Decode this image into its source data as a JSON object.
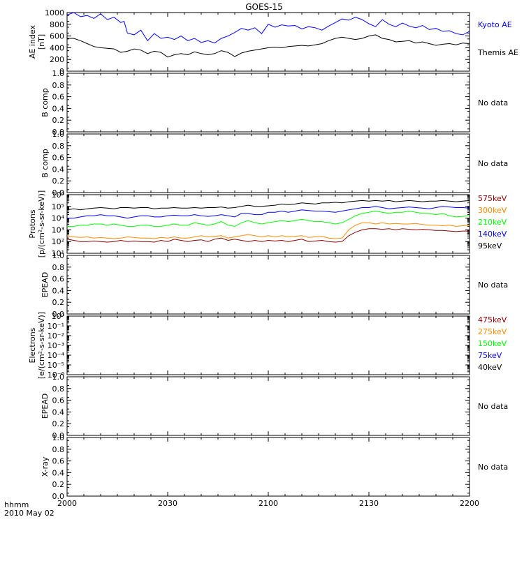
{
  "title": "GOES-15",
  "footer": {
    "time_label": "hhmm",
    "date_label": "2010 May 02"
  },
  "x_axis": {
    "range": [
      0,
      120
    ],
    "tick_labels": [
      "2000",
      "2030",
      "2100",
      "2130",
      "2200"
    ],
    "tick_values": [
      0,
      30,
      60,
      90,
      120
    ]
  },
  "chart_data": [
    {
      "type": "line",
      "id": "ae",
      "ylabel": [
        "AE index",
        "[nT]"
      ],
      "ylim": [
        0,
        1000
      ],
      "tick_labels": [
        "0",
        "200",
        "400",
        "600",
        "800",
        "1000"
      ],
      "x_note": "minutes after 2000 UT",
      "series": [
        {
          "name": "Kyoto AE",
          "color": "#0000ff",
          "x": [
            0,
            2,
            4,
            6,
            8,
            10,
            12,
            14,
            16,
            17,
            18,
            20,
            22,
            24,
            26,
            28,
            30,
            32,
            34,
            36,
            38,
            40,
            42,
            44,
            46,
            48,
            50,
            52,
            54,
            56,
            58,
            60,
            62,
            64,
            66,
            68,
            70,
            72,
            74,
            76,
            78,
            80,
            82,
            84,
            86,
            88,
            90,
            92,
            94,
            96,
            98,
            100,
            102,
            104,
            106,
            108,
            110,
            112,
            114,
            116,
            118,
            120
          ],
          "values": [
            960,
            1000,
            930,
            950,
            900,
            980,
            880,
            920,
            830,
            850,
            650,
            620,
            700,
            520,
            640,
            560,
            580,
            540,
            600,
            520,
            560,
            490,
            520,
            480,
            560,
            600,
            660,
            730,
            700,
            740,
            640,
            800,
            750,
            790,
            770,
            780,
            720,
            760,
            740,
            700,
            770,
            830,
            890,
            870,
            920,
            880,
            810,
            760,
            880,
            800,
            760,
            820,
            770,
            740,
            780,
            710,
            730,
            680,
            690,
            640,
            620,
            680
          ]
        },
        {
          "name": "Themis AE",
          "color": "#000000",
          "x": [
            0,
            2,
            4,
            6,
            8,
            10,
            12,
            14,
            16,
            18,
            20,
            22,
            24,
            26,
            28,
            30,
            32,
            34,
            36,
            38,
            40,
            42,
            44,
            46,
            48,
            50,
            52,
            54,
            56,
            58,
            60,
            62,
            64,
            66,
            68,
            70,
            72,
            74,
            76,
            78,
            80,
            82,
            84,
            86,
            88,
            90,
            92,
            94,
            96,
            98,
            100,
            102,
            104,
            106,
            108,
            110,
            112,
            114,
            116,
            118,
            120
          ],
          "values": [
            560,
            560,
            520,
            470,
            420,
            400,
            390,
            380,
            320,
            340,
            380,
            360,
            300,
            340,
            320,
            240,
            280,
            300,
            280,
            330,
            300,
            280,
            300,
            350,
            320,
            250,
            310,
            340,
            360,
            380,
            400,
            410,
            400,
            420,
            430,
            440,
            430,
            450,
            470,
            520,
            560,
            580,
            560,
            540,
            560,
            600,
            620,
            560,
            540,
            500,
            510,
            520,
            480,
            500,
            470,
            440,
            460,
            470,
            450,
            480,
            470
          ]
        }
      ]
    },
    {
      "type": "line",
      "id": "bcomp1",
      "ylabel": [
        "B comp"
      ],
      "ylim": [
        0,
        1
      ],
      "tick_labels": [
        "0.0",
        "0.2",
        "0.4",
        "0.6",
        "0.8",
        "1.0"
      ],
      "status": "No data",
      "series": []
    },
    {
      "type": "line",
      "id": "bcomp2",
      "ylabel": [
        "B comp"
      ],
      "ylim": [
        0,
        1
      ],
      "tick_labels": [
        "0.0",
        "0.2",
        "0.4",
        "0.6",
        "0.8",
        "1.0"
      ],
      "status": "No data",
      "series": []
    },
    {
      "type": "line",
      "id": "protons",
      "scale": "log",
      "ylabel": [
        "Protons",
        "[p/(cm²-s-sr-keV)]"
      ],
      "ylim": [
        10,
        1000000
      ],
      "tick_labels": [
        "10¹",
        "10²",
        "10³",
        "10⁴",
        "10⁵",
        "10⁶"
      ],
      "series": [
        {
          "name": "575keV",
          "color": "#8b0000",
          "log10_values": [
            2.2,
            2.1,
            2.0,
            2.0,
            2.05,
            2.0,
            1.95,
            2.0,
            2.1,
            2.0,
            2.05,
            2.0,
            2.0,
            1.95,
            2.1,
            2.0,
            2.2,
            2.1,
            2.0,
            2.1,
            2.15,
            2.0,
            2.2,
            2.3,
            2.1,
            2.2,
            2.1,
            2.0,
            2.1,
            2.0,
            2.1,
            2.05,
            2.1,
            2.0,
            2.1,
            2.2,
            2.0,
            2.05,
            2.1,
            2.0,
            1.95,
            2.0,
            2.5,
            2.8,
            3.0,
            3.1,
            3.1,
            3.05,
            3.1,
            3.0,
            3.1,
            3.05,
            3.0,
            3.05,
            3.0,
            2.95,
            2.95,
            2.9,
            2.85,
            2.9,
            2.9
          ]
        },
        {
          "name": "300keV",
          "color": "#ff8c00",
          "log10_values": [
            2.5,
            2.4,
            2.35,
            2.4,
            2.3,
            2.35,
            2.3,
            2.25,
            2.3,
            2.4,
            2.35,
            2.3,
            2.3,
            2.25,
            2.35,
            2.3,
            2.4,
            2.3,
            2.3,
            2.4,
            2.5,
            2.4,
            2.45,
            2.5,
            2.3,
            2.4,
            2.5,
            2.6,
            2.5,
            2.4,
            2.5,
            2.4,
            2.5,
            2.4,
            2.45,
            2.5,
            2.35,
            2.4,
            2.45,
            2.3,
            2.25,
            2.3,
            3.0,
            3.4,
            3.6,
            3.6,
            3.5,
            3.6,
            3.5,
            3.55,
            3.5,
            3.5,
            3.55,
            3.45,
            3.4,
            3.4,
            3.35,
            3.4,
            3.3,
            3.35,
            3.4
          ]
        },
        {
          "name": "210keV",
          "color": "#00ff00",
          "log10_values": [
            3.3,
            3.3,
            3.4,
            3.4,
            3.5,
            3.5,
            3.4,
            3.5,
            3.4,
            3.3,
            3.3,
            3.4,
            3.4,
            3.3,
            3.3,
            3.4,
            3.5,
            3.4,
            3.4,
            3.6,
            3.5,
            3.4,
            3.5,
            3.7,
            3.4,
            3.3,
            3.6,
            3.8,
            3.6,
            3.5,
            3.6,
            3.7,
            3.8,
            3.7,
            3.8,
            3.9,
            3.8,
            3.7,
            3.7,
            3.6,
            3.5,
            3.6,
            3.9,
            4.2,
            4.4,
            4.5,
            4.6,
            4.5,
            4.4,
            4.5,
            4.5,
            4.6,
            4.5,
            4.4,
            4.4,
            4.3,
            4.4,
            4.2,
            4.1,
            4.15,
            4.2
          ]
        },
        {
          "name": "140keV",
          "color": "#0000ff",
          "log10_values": [
            4.0,
            4.0,
            4.1,
            4.2,
            4.2,
            4.3,
            4.2,
            4.2,
            4.1,
            4.0,
            4.1,
            4.2,
            4.2,
            4.1,
            4.1,
            4.2,
            4.25,
            4.2,
            4.2,
            4.3,
            4.2,
            4.15,
            4.2,
            4.3,
            4.2,
            4.1,
            4.4,
            4.4,
            4.3,
            4.3,
            4.5,
            4.5,
            4.6,
            4.5,
            4.6,
            4.7,
            4.65,
            4.6,
            4.6,
            4.55,
            4.5,
            4.6,
            4.7,
            4.8,
            4.9,
            4.9,
            5.0,
            4.9,
            4.8,
            4.85,
            4.9,
            4.95,
            4.9,
            4.85,
            4.8,
            4.9,
            5.0,
            4.95,
            4.9,
            4.9,
            4.85
          ]
        },
        {
          "name": "95keV",
          "color": "#000000",
          "log10_values": [
            4.7,
            4.8,
            4.7,
            4.8,
            4.85,
            4.9,
            4.85,
            4.8,
            4.9,
            4.9,
            4.85,
            4.9,
            4.9,
            4.8,
            4.85,
            4.85,
            4.9,
            4.85,
            4.85,
            4.9,
            4.85,
            4.9,
            4.9,
            4.95,
            4.85,
            4.9,
            5.0,
            5.1,
            5.0,
            5.0,
            5.05,
            5.1,
            5.2,
            5.15,
            5.2,
            5.3,
            5.25,
            5.2,
            5.3,
            5.3,
            5.35,
            5.3,
            5.4,
            5.45,
            5.5,
            5.45,
            5.5,
            5.45,
            5.5,
            5.4,
            5.45,
            5.5,
            5.45,
            5.4,
            5.45,
            5.45,
            5.5,
            5.45,
            5.4,
            5.45,
            5.5
          ]
        }
      ]
    },
    {
      "type": "line",
      "id": "epead1",
      "ylabel": [
        "EPEAD"
      ],
      "ylim": [
        0,
        1
      ],
      "tick_labels": [
        "0.0",
        "0.2",
        "0.4",
        "0.6",
        "0.8",
        "1.0"
      ],
      "status": "No data",
      "series": []
    },
    {
      "type": "line",
      "id": "electrons",
      "scale": "log",
      "ylabel": [
        "Electrons",
        "[e/(cm²-s-sr-keV)]"
      ],
      "ylim": [
        1e-06,
        1
      ],
      "tick_labels": [
        "10⁰",
        "10⁻¹",
        "10⁻²",
        "10⁻³",
        "10⁻⁴",
        "10⁻⁵",
        "10⁻⁶"
      ],
      "series": [
        {
          "name": "475keV",
          "color": "#8b0000",
          "values": []
        },
        {
          "name": "275keV",
          "color": "#ff8c00",
          "values": []
        },
        {
          "name": "150keV",
          "color": "#00ff00",
          "values": []
        },
        {
          "name": "75keV",
          "color": "#0000ff",
          "values": []
        },
        {
          "name": "40keV",
          "color": "#000000",
          "values": []
        }
      ]
    },
    {
      "type": "line",
      "id": "epead2",
      "ylabel": [
        "EPEAD"
      ],
      "ylim": [
        0,
        1
      ],
      "tick_labels": [
        "0.0",
        "0.2",
        "0.4",
        "0.6",
        "0.8",
        "1.0"
      ],
      "status": "No data",
      "series": []
    },
    {
      "type": "line",
      "id": "xray",
      "ylabel": [
        "X-ray"
      ],
      "ylim": [
        0,
        1
      ],
      "tick_labels": [
        "0.0",
        "0.2",
        "0.4",
        "0.6",
        "0.8",
        "1.0"
      ],
      "status": "No data",
      "series": []
    }
  ]
}
